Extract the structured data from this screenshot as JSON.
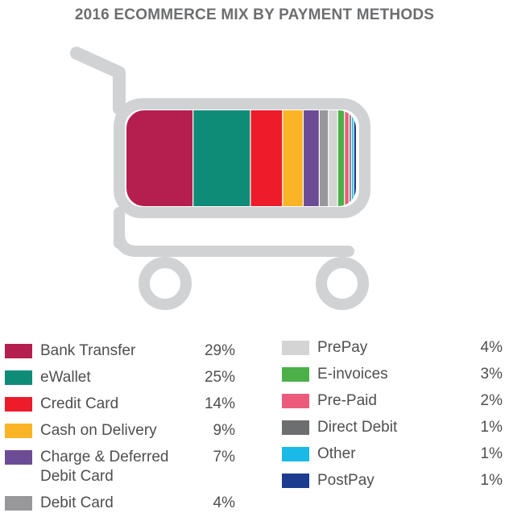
{
  "chart_data": {
    "type": "bar",
    "title": "2016 ECOMMERCE MIX BY PAYMENT METHODS",
    "categories": [
      "Bank Transfer",
      "eWallet",
      "Credit Card",
      "Cash on Delivery",
      "Charge & Deferred Debit Card",
      "Debit Card",
      "PrePay",
      "E-invoices",
      "Pre-Paid",
      "Direct Debit",
      "Other",
      "PostPay"
    ],
    "values": [
      29,
      25,
      14,
      9,
      7,
      4,
      4,
      3,
      2,
      1,
      1,
      1
    ],
    "value_labels": [
      "29%",
      "25%",
      "14%",
      "9%",
      "7%",
      "4%",
      "4%",
      "3%",
      "2%",
      "1%",
      "1%",
      "1%"
    ],
    "colors": [
      "#b51f4f",
      "#0e8c78",
      "#ec1c2b",
      "#fbb426",
      "#6d4c96",
      "#98989a",
      "#d4d4d4",
      "#4bb048",
      "#ec5b7b",
      "#6d6e70",
      "#19b9e8",
      "#1d3c8f"
    ],
    "legend_placement": "bottom",
    "stacked_in": "shopping-cart-icon"
  }
}
